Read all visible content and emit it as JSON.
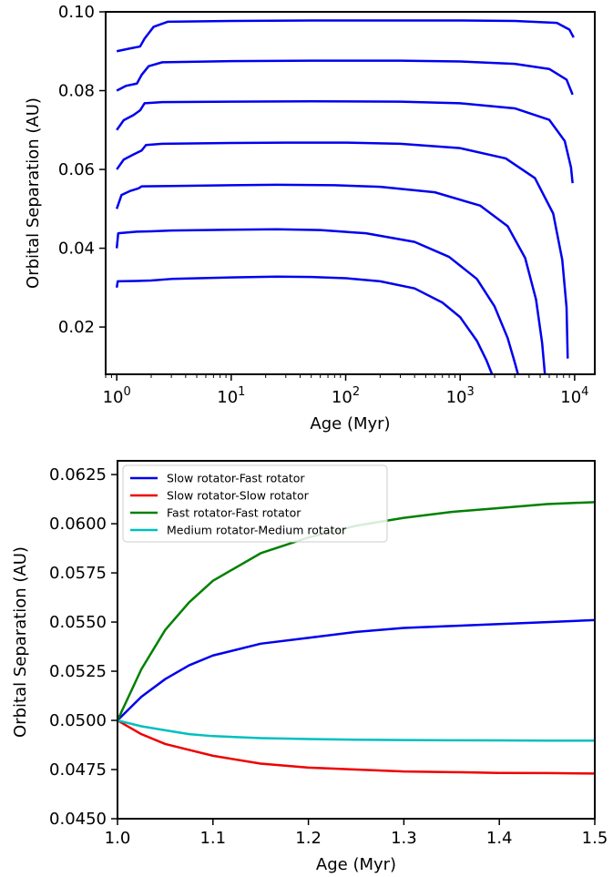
{
  "chart_data": [
    {
      "type": "line",
      "title": "",
      "xlabel": "Age (Myr)",
      "ylabel": "Orbital Separation (AU)",
      "xscale": "log",
      "xlim": [
        0.8,
        15000
      ],
      "ylim": [
        0.008,
        0.1
      ],
      "x_ticks": [
        1,
        10,
        100,
        1000,
        10000
      ],
      "x_tick_labels": [
        [
          "10",
          "0"
        ],
        [
          "10",
          "1"
        ],
        [
          "10",
          "2"
        ],
        [
          "10",
          "3"
        ],
        [
          "10",
          "4"
        ]
      ],
      "y_ticks": [
        0.02,
        0.04,
        0.06,
        0.08,
        0.1
      ],
      "y_tick_labels": [
        "0.02",
        "0.04",
        "0.06",
        "0.08",
        "0.10"
      ],
      "grid": false,
      "color": "#0000ee",
      "series": [
        {
          "points": [
            [
              1,
              0.03
            ],
            [
              1.02,
              0.0316
            ],
            [
              1.5,
              0.0317
            ],
            [
              2,
              0.0318
            ],
            [
              3,
              0.0322
            ],
            [
              10,
              0.0326
            ],
            [
              25,
              0.0328
            ],
            [
              50,
              0.0327
            ],
            [
              100,
              0.0324
            ],
            [
              200,
              0.0316
            ],
            [
              400,
              0.0298
            ],
            [
              700,
              0.0262
            ],
            [
              1000,
              0.0225
            ],
            [
              1400,
              0.0165
            ],
            [
              1700,
              0.0115
            ],
            [
              1900,
              0.008
            ]
          ]
        },
        {
          "points": [
            [
              1,
              0.04
            ],
            [
              1.03,
              0.0438
            ],
            [
              1.5,
              0.0442
            ],
            [
              2,
              0.0443
            ],
            [
              3,
              0.0445
            ],
            [
              10,
              0.0447
            ],
            [
              25,
              0.0448
            ],
            [
              60,
              0.0446
            ],
            [
              150,
              0.0438
            ],
            [
              400,
              0.0416
            ],
            [
              800,
              0.0378
            ],
            [
              1400,
              0.0322
            ],
            [
              2000,
              0.0252
            ],
            [
              2600,
              0.0172
            ],
            [
              3000,
              0.011
            ],
            [
              3200,
              0.008
            ]
          ]
        },
        {
          "points": [
            [
              1,
              0.05
            ],
            [
              1.1,
              0.0535
            ],
            [
              1.3,
              0.0545
            ],
            [
              1.55,
              0.0552
            ],
            [
              1.65,
              0.0557
            ],
            [
              3,
              0.0558
            ],
            [
              10,
              0.056
            ],
            [
              25,
              0.0561
            ],
            [
              80,
              0.056
            ],
            [
              200,
              0.0556
            ],
            [
              600,
              0.0542
            ],
            [
              1500,
              0.0508
            ],
            [
              2600,
              0.0456
            ],
            [
              3700,
              0.0375
            ],
            [
              4600,
              0.027
            ],
            [
              5200,
              0.016
            ],
            [
              5500,
              0.008
            ]
          ]
        },
        {
          "points": [
            [
              1,
              0.06
            ],
            [
              1.15,
              0.0625
            ],
            [
              1.4,
              0.0638
            ],
            [
              1.65,
              0.0648
            ],
            [
              1.8,
              0.0662
            ],
            [
              2.5,
              0.0665
            ],
            [
              10,
              0.0667
            ],
            [
              30,
              0.0668
            ],
            [
              100,
              0.0668
            ],
            [
              300,
              0.0665
            ],
            [
              1000,
              0.0654
            ],
            [
              2500,
              0.0628
            ],
            [
              4500,
              0.0578
            ],
            [
              6500,
              0.0488
            ],
            [
              7800,
              0.037
            ],
            [
              8500,
              0.025
            ],
            [
              8700,
              0.012
            ]
          ]
        },
        {
          "points": [
            [
              1,
              0.07
            ],
            [
              1.15,
              0.0725
            ],
            [
              1.4,
              0.0738
            ],
            [
              1.6,
              0.075
            ],
            [
              1.75,
              0.0768
            ],
            [
              2.5,
              0.0771
            ],
            [
              10,
              0.0772
            ],
            [
              50,
              0.0773
            ],
            [
              300,
              0.0772
            ],
            [
              1000,
              0.0768
            ],
            [
              3000,
              0.0755
            ],
            [
              6000,
              0.0726
            ],
            [
              8200,
              0.0672
            ],
            [
              9300,
              0.0605
            ],
            [
              9600,
              0.0565
            ]
          ]
        },
        {
          "points": [
            [
              1,
              0.08
            ],
            [
              1.2,
              0.0812
            ],
            [
              1.5,
              0.0818
            ],
            [
              1.65,
              0.084
            ],
            [
              1.9,
              0.0862
            ],
            [
              2.5,
              0.0872
            ],
            [
              10,
              0.0875
            ],
            [
              50,
              0.0876
            ],
            [
              300,
              0.0876
            ],
            [
              1000,
              0.0874
            ],
            [
              3000,
              0.0868
            ],
            [
              6000,
              0.0855
            ],
            [
              8500,
              0.0828
            ],
            [
              9600,
              0.079
            ]
          ]
        },
        {
          "points": [
            [
              1,
              0.09
            ],
            [
              1.3,
              0.0907
            ],
            [
              1.6,
              0.0912
            ],
            [
              1.75,
              0.0932
            ],
            [
              2.1,
              0.0962
            ],
            [
              2.8,
              0.0975
            ],
            [
              10,
              0.0977
            ],
            [
              50,
              0.0978
            ],
            [
              300,
              0.0978
            ],
            [
              1000,
              0.0978
            ],
            [
              3000,
              0.0977
            ],
            [
              7000,
              0.0972
            ],
            [
              9000,
              0.0955
            ],
            [
              9800,
              0.0935
            ]
          ]
        }
      ]
    },
    {
      "type": "line",
      "title": "",
      "xlabel": "Age (Myr)",
      "ylabel": "Orbital Separation (AU)",
      "xlim": [
        1.0,
        1.5
      ],
      "ylim": [
        0.045,
        0.0632
      ],
      "x_ticks": [
        1.0,
        1.1,
        1.2,
        1.3,
        1.4,
        1.5
      ],
      "x_tick_labels": [
        "1.0",
        "1.1",
        "1.2",
        "1.3",
        "1.4",
        "1.5"
      ],
      "y_ticks": [
        0.045,
        0.0475,
        0.05,
        0.0525,
        0.055,
        0.0575,
        0.06,
        0.0625
      ],
      "y_tick_labels": [
        "0.0450",
        "0.0475",
        "0.0500",
        "0.0525",
        "0.0550",
        "0.0575",
        "0.0600",
        "0.0625"
      ],
      "grid": false,
      "legend_position": "top-left",
      "series": [
        {
          "name": "Slow rotator-Fast rotator",
          "color": "#0000ee",
          "points": [
            [
              1.0,
              0.05
            ],
            [
              1.025,
              0.0512
            ],
            [
              1.05,
              0.0521
            ],
            [
              1.075,
              0.0528
            ],
            [
              1.1,
              0.0533
            ],
            [
              1.15,
              0.0539
            ],
            [
              1.2,
              0.0542
            ],
            [
              1.25,
              0.0545
            ],
            [
              1.3,
              0.0547
            ],
            [
              1.35,
              0.0548
            ],
            [
              1.4,
              0.0549
            ],
            [
              1.45,
              0.055
            ],
            [
              1.5,
              0.0551
            ]
          ]
        },
        {
          "name": "Slow rotator-Slow rotator",
          "color": "#ee0000",
          "points": [
            [
              1.0,
              0.05
            ],
            [
              1.025,
              0.0493
            ],
            [
              1.05,
              0.0488
            ],
            [
              1.075,
              0.0485
            ],
            [
              1.1,
              0.0482
            ],
            [
              1.15,
              0.0478
            ],
            [
              1.2,
              0.0476
            ],
            [
              1.25,
              0.0475
            ],
            [
              1.3,
              0.0474
            ],
            [
              1.35,
              0.04737
            ],
            [
              1.4,
              0.04733
            ],
            [
              1.45,
              0.04732
            ],
            [
              1.5,
              0.0473
            ]
          ]
        },
        {
          "name": "Fast rotator-Fast rotator",
          "color": "#008000",
          "points": [
            [
              1.0,
              0.05
            ],
            [
              1.025,
              0.0526
            ],
            [
              1.05,
              0.0546
            ],
            [
              1.075,
              0.056
            ],
            [
              1.1,
              0.0571
            ],
            [
              1.15,
              0.0585
            ],
            [
              1.2,
              0.0593
            ],
            [
              1.25,
              0.0599
            ],
            [
              1.3,
              0.0603
            ],
            [
              1.35,
              0.0606
            ],
            [
              1.4,
              0.0608
            ],
            [
              1.45,
              0.061
            ],
            [
              1.5,
              0.0611
            ]
          ]
        },
        {
          "name": "Medium rotator-Medium rotator",
          "color": "#00bfbf",
          "points": [
            [
              1.0,
              0.05
            ],
            [
              1.025,
              0.0497
            ],
            [
              1.05,
              0.0495
            ],
            [
              1.075,
              0.0493
            ],
            [
              1.1,
              0.0492
            ],
            [
              1.15,
              0.0491
            ],
            [
              1.2,
              0.04905
            ],
            [
              1.25,
              0.04902
            ],
            [
              1.3,
              0.049
            ],
            [
              1.35,
              0.04899
            ],
            [
              1.4,
              0.04898
            ],
            [
              1.45,
              0.04897
            ],
            [
              1.5,
              0.04897
            ]
          ]
        }
      ]
    }
  ]
}
